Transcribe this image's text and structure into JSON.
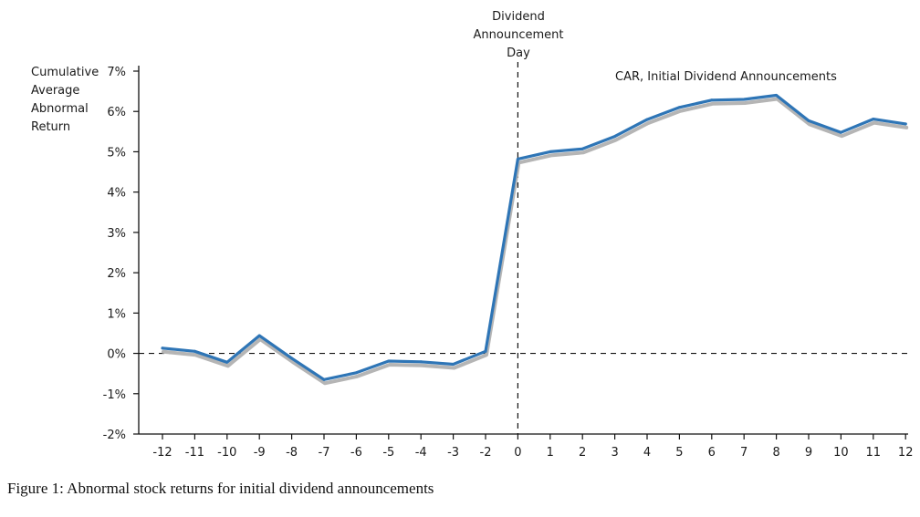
{
  "caption": "Figure 1: Abnormal stock returns for initial dividend announcements",
  "chart_data": {
    "type": "line",
    "title": "",
    "ylabel_lines": [
      "Cumulative",
      "Average",
      "Abnormal",
      "Return"
    ],
    "xlabel": "",
    "x": [
      -12,
      -11,
      -10,
      -9,
      -8,
      -7,
      -6,
      -5,
      -4,
      -3,
      -2,
      0,
      1,
      2,
      3,
      4,
      5,
      6,
      7,
      8,
      9,
      10,
      11,
      12
    ],
    "x_tick_labels": [
      "-12",
      "-11",
      "-10",
      "-9",
      "-8",
      "-7",
      "-6",
      "-5",
      "-4",
      "-3",
      "-2",
      "0",
      "1",
      "2",
      "3",
      "4",
      "5",
      "6",
      "7",
      "8",
      "9",
      "10",
      "11",
      "12"
    ],
    "y_tick_values": [
      -2,
      -1,
      0,
      1,
      2,
      3,
      4,
      5,
      6,
      7
    ],
    "y_tick_labels": [
      "-2%",
      "-1%",
      "0%",
      "1%",
      "2%",
      "3%",
      "4%",
      "5%",
      "6%",
      "7%"
    ],
    "ylim": [
      -2,
      7
    ],
    "series": [
      {
        "name": "CAR, Initial Dividend Announcements",
        "color": "#2e75b6",
        "shadow_color": "#b5b5b5",
        "values": [
          0.13,
          0.05,
          -0.22,
          0.44,
          -0.12,
          -0.65,
          -0.48,
          -0.19,
          -0.21,
          -0.27,
          0.05,
          4.82,
          5.0,
          5.07,
          5.38,
          5.8,
          6.1,
          6.28,
          6.3,
          6.4,
          5.77,
          5.48,
          5.81,
          5.69
        ]
      }
    ],
    "reference_lines": [
      {
        "orientation": "horizontal",
        "value": 0,
        "style": "dashed"
      },
      {
        "orientation": "vertical",
        "at": 0,
        "style": "dashed",
        "label_lines": [
          "Dividend",
          "Announcement",
          "Day"
        ]
      }
    ],
    "legend": "top-right",
    "grid": false
  }
}
